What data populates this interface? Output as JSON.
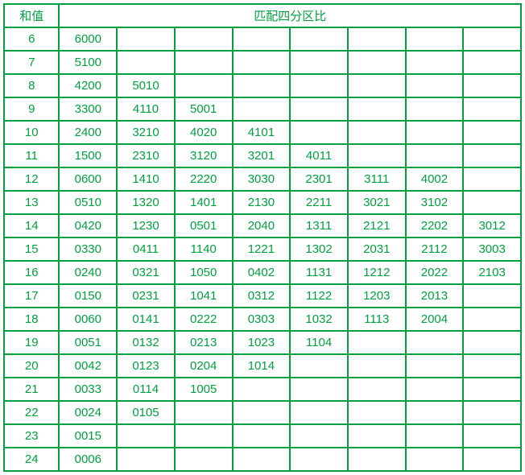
{
  "header": {
    "left": "和值",
    "right": "匹配四分区比"
  },
  "columns_count": 8,
  "rows": [
    {
      "key": "6",
      "cells": [
        "6000",
        "",
        "",
        "",
        "",
        "",
        "",
        ""
      ]
    },
    {
      "key": "7",
      "cells": [
        "5100",
        "",
        "",
        "",
        "",
        "",
        "",
        ""
      ]
    },
    {
      "key": "8",
      "cells": [
        "4200",
        "5010",
        "",
        "",
        "",
        "",
        "",
        ""
      ]
    },
    {
      "key": "9",
      "cells": [
        "3300",
        "4110",
        "5001",
        "",
        "",
        "",
        "",
        ""
      ]
    },
    {
      "key": "10",
      "cells": [
        "2400",
        "3210",
        "4020",
        "4101",
        "",
        "",
        "",
        ""
      ]
    },
    {
      "key": "11",
      "cells": [
        "1500",
        "2310",
        "3120",
        "3201",
        "4011",
        "",
        "",
        ""
      ]
    },
    {
      "key": "12",
      "cells": [
        "0600",
        "1410",
        "2220",
        "3030",
        "2301",
        "3111",
        "4002",
        ""
      ]
    },
    {
      "key": "13",
      "cells": [
        "0510",
        "1320",
        "1401",
        "2130",
        "2211",
        "3021",
        "3102",
        ""
      ]
    },
    {
      "key": "14",
      "cells": [
        "0420",
        "1230",
        "0501",
        "2040",
        "1311",
        "2121",
        "2202",
        "3012"
      ]
    },
    {
      "key": "15",
      "cells": [
        "0330",
        "0411",
        "1140",
        "1221",
        "1302",
        "2031",
        "2112",
        "3003"
      ]
    },
    {
      "key": "16",
      "cells": [
        "0240",
        "0321",
        "1050",
        "0402",
        "1131",
        "1212",
        "2022",
        "2103"
      ]
    },
    {
      "key": "17",
      "cells": [
        "0150",
        "0231",
        "1041",
        "0312",
        "1122",
        "1203",
        "2013",
        ""
      ]
    },
    {
      "key": "18",
      "cells": [
        "0060",
        "0141",
        "0222",
        "0303",
        "1032",
        "1113",
        "2004",
        ""
      ]
    },
    {
      "key": "19",
      "cells": [
        "0051",
        "0132",
        "0213",
        "1023",
        "1104",
        "",
        "",
        ""
      ]
    },
    {
      "key": "20",
      "cells": [
        "0042",
        "0123",
        "0204",
        "1014",
        "",
        "",
        "",
        ""
      ]
    },
    {
      "key": "21",
      "cells": [
        "0033",
        "0114",
        "1005",
        "",
        "",
        "",
        "",
        ""
      ]
    },
    {
      "key": "22",
      "cells": [
        "0024",
        "0105",
        "",
        "",
        "",
        "",
        "",
        ""
      ]
    },
    {
      "key": "23",
      "cells": [
        "0015",
        "",
        "",
        "",
        "",
        "",
        "",
        ""
      ]
    },
    {
      "key": "24",
      "cells": [
        "0006",
        "",
        "",
        "",
        "",
        "",
        "",
        ""
      ]
    }
  ],
  "styling": {
    "border_color": "#00a040",
    "text_color": "#00a040",
    "background_color": "#ffffff",
    "font_size": 15,
    "border_width": 2
  }
}
